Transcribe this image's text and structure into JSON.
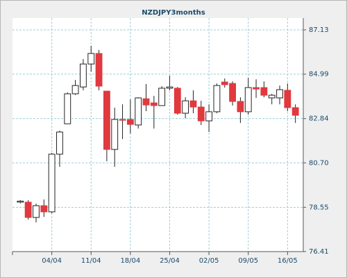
{
  "chart_data": {
    "type": "candlestick",
    "title": "NZDJPY3months",
    "categories": [
      null,
      null,
      null,
      null,
      "04/04",
      null,
      null,
      null,
      null,
      "11/04",
      null,
      null,
      null,
      null,
      "18/04",
      null,
      null,
      null,
      null,
      "25/04",
      null,
      null,
      null,
      null,
      "02/05",
      null,
      null,
      null,
      null,
      "09/05",
      null,
      null,
      null,
      null,
      "16/05",
      null
    ],
    "open": [
      78.8,
      78.8,
      78.06,
      78.63,
      78.33,
      81.12,
      82.59,
      84.04,
      84.37,
      85.48,
      85.99,
      84.17,
      81.35,
      82.8,
      82.8,
      82.53,
      83.8,
      83.6,
      83.47,
      84.31,
      84.31,
      83.1,
      83.7,
      83.4,
      82.73,
      83.17,
      84.61,
      84.54,
      83.67,
      83.17,
      84.34,
      84.34,
      83.84,
      83.84,
      84.21,
      83.37
    ],
    "high": [
      78.9,
      78.9,
      78.73,
      78.93,
      81.18,
      82.26,
      84.11,
      84.71,
      85.72,
      86.36,
      86.16,
      84.17,
      83.37,
      83.53,
      83.77,
      83.87,
      84.51,
      83.94,
      84.41,
      84.91,
      84.37,
      83.87,
      84.21,
      83.7,
      83.53,
      84.54,
      84.78,
      84.64,
      83.87,
      84.81,
      84.74,
      84.64,
      84.04,
      84.44,
      84.54,
      83.53
    ],
    "low": [
      78.74,
      77.96,
      77.82,
      78.09,
      78.26,
      80.51,
      82.59,
      83.98,
      84.21,
      85.11,
      84.21,
      80.78,
      80.51,
      81.85,
      82.12,
      82.36,
      83.2,
      82.36,
      83.47,
      84.21,
      83.03,
      82.86,
      83.1,
      82.53,
      82.19,
      83.1,
      84.34,
      83.47,
      82.63,
      83.03,
      83.84,
      83.87,
      83.53,
      83.53,
      83.2,
      82.63
    ],
    "close": [
      78.85,
      78.06,
      78.63,
      78.33,
      81.12,
      82.19,
      84.04,
      84.44,
      85.48,
      85.99,
      84.41,
      81.35,
      82.8,
      82.76,
      82.56,
      83.84,
      83.5,
      83.47,
      84.31,
      84.37,
      83.1,
      83.7,
      83.4,
      82.73,
      83.17,
      84.44,
      84.48,
      83.67,
      83.17,
      84.34,
      84.27,
      83.97,
      83.97,
      84.24,
      83.37,
      83.0
    ],
    "up_color": "#ffffff",
    "down_color": "#e0393e",
    "ylim": [
      76.41,
      87.13
    ],
    "yticks": [
      76.41,
      78.55,
      {
        "value": 80.7,
        "label": "80.70"
      },
      82.84,
      84.99,
      87.13
    ],
    "grid": true
  }
}
